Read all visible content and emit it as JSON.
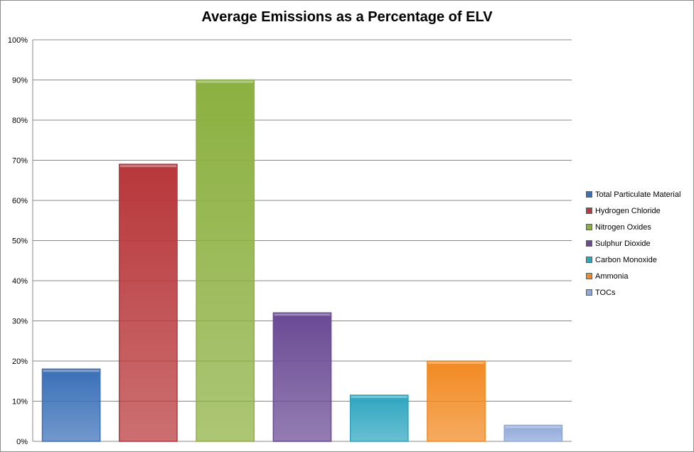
{
  "chart_data": {
    "type": "bar",
    "title": "Average Emissions as a Percentage of ELV",
    "xlabel": "",
    "ylabel": "",
    "ylim": [
      0,
      100
    ],
    "y_ticks": [
      "0%",
      "10%",
      "20%",
      "30%",
      "40%",
      "50%",
      "60%",
      "70%",
      "80%",
      "90%",
      "100%"
    ],
    "grid": true,
    "legend_position": "right",
    "series": [
      {
        "name": "Total Particulate Material",
        "value": 18,
        "color": "#3a70b8"
      },
      {
        "name": "Hydrogen Chloride",
        "value": 69,
        "color": "#b8373a"
      },
      {
        "name": "Nitrogen Oxides",
        "value": 90,
        "color": "#8cb040"
      },
      {
        "name": "Sulphur Dioxide",
        "value": 32,
        "color": "#6a4a94"
      },
      {
        "name": "Carbon Monoxide",
        "value": 11.5,
        "color": "#2ea6c0"
      },
      {
        "name": "Ammonia",
        "value": 20,
        "color": "#f28a22"
      },
      {
        "name": "TOCs",
        "value": 4,
        "color": "#8ea8d8"
      }
    ]
  }
}
